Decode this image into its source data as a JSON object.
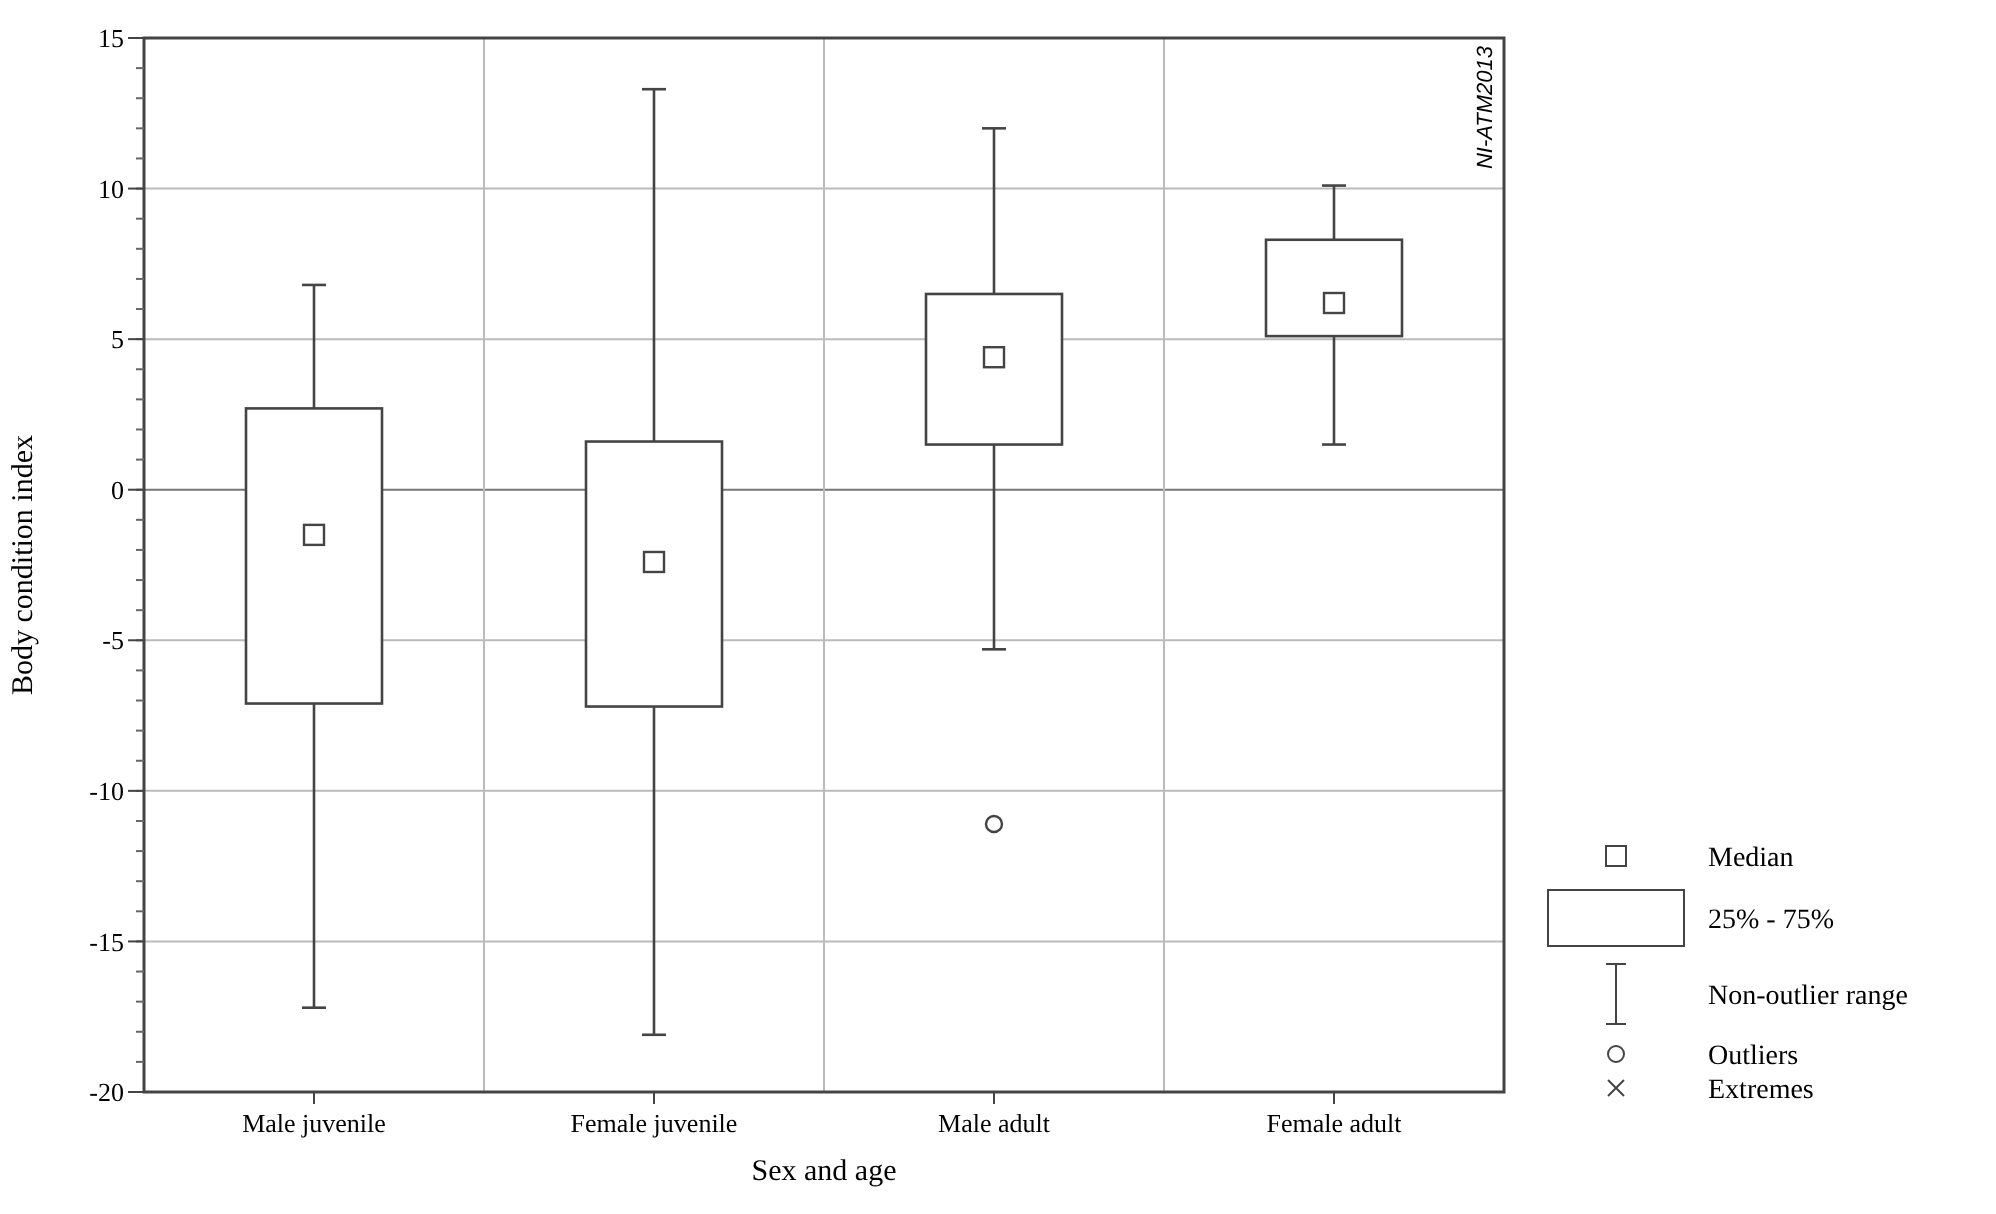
{
  "chart_data": {
    "type": "box",
    "xlabel": "Sex and age",
    "ylabel": "Body condition index",
    "categories": [
      "Male juvenile",
      "Female juvenile",
      "Male adult",
      "Female adult"
    ],
    "boxes": [
      {
        "low": -17.2,
        "q1": -7.1,
        "median": -1.5,
        "q3": 2.7,
        "high": 6.8
      },
      {
        "low": -18.1,
        "q1": -7.2,
        "median": -2.4,
        "q3": 1.6,
        "high": 13.3
      },
      {
        "low": -5.3,
        "q1": 1.5,
        "median": 4.4,
        "q3": 6.5,
        "high": 12,
        "outliers": [
          -11.1
        ]
      },
      {
        "low": 1.5,
        "q1": 5.1,
        "median": 6.2,
        "q3": 8.3,
        "high": 10.1
      }
    ],
    "ylim": [
      -20,
      15
    ],
    "yticks": [
      -20,
      -15,
      -10,
      -5,
      0,
      5,
      10,
      15
    ],
    "grid": true,
    "annotations": [
      "NI-ATM2013",
      "Median",
      "25% - 75%",
      "Non-outlier range",
      "Outliers",
      "Extremes"
    ]
  }
}
